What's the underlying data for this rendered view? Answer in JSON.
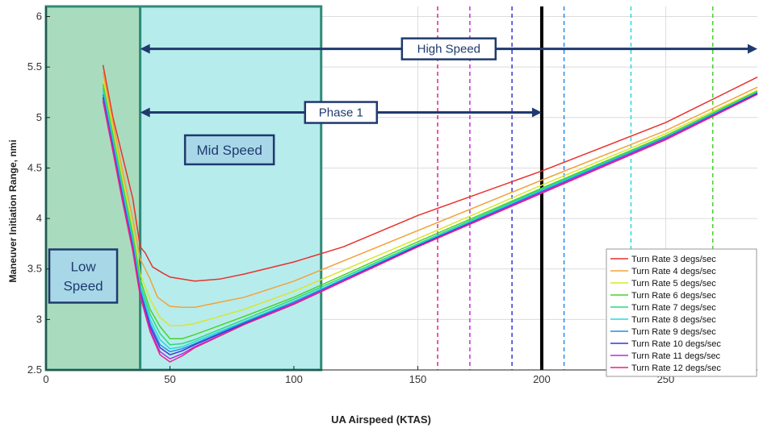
{
  "chart_data": {
    "type": "line",
    "xlabel": "UA Airspeed (KTAS)",
    "ylabel": "Maneuver Initiation Range, nmi",
    "xlim": [
      0,
      287
    ],
    "ylim": [
      2.5,
      6.1
    ],
    "xticks": [
      0,
      50,
      100,
      150,
      200,
      250
    ],
    "yticks": [
      2.5,
      3,
      3.5,
      4,
      4.5,
      5,
      5.5,
      6
    ],
    "xtick_labels": [
      "0",
      "50",
      "100",
      "150",
      "200",
      "250"
    ],
    "ytick_labels": [
      "2.5",
      "3",
      "3.5",
      "4",
      "4.5",
      "5",
      "5.5",
      "6"
    ],
    "grid": true,
    "legend_position": "bottom-right",
    "series": [
      {
        "name": "Turn Rate 3 degs/sec",
        "color": "#e8312e",
        "x": [
          23,
          27,
          31,
          35,
          38,
          40,
          43,
          47,
          50,
          55,
          60,
          70,
          80,
          100,
          120,
          150,
          200,
          250,
          287
        ],
        "y": [
          5.52,
          5.0,
          4.6,
          4.2,
          3.72,
          3.66,
          3.52,
          3.46,
          3.42,
          3.4,
          3.38,
          3.4,
          3.45,
          3.57,
          3.72,
          4.03,
          4.47,
          4.95,
          5.4
        ]
      },
      {
        "name": "Turn Rate 4 degs/sec",
        "color": "#f2a23b",
        "x": [
          23,
          27,
          31,
          35,
          38,
          42,
          45,
          50,
          55,
          60,
          80,
          100,
          150,
          200,
          250,
          287
        ],
        "y": [
          5.45,
          4.95,
          4.45,
          4.0,
          3.6,
          3.4,
          3.22,
          3.13,
          3.12,
          3.12,
          3.22,
          3.38,
          3.88,
          4.38,
          4.87,
          5.3
        ]
      },
      {
        "name": "Turn Rate 5 degs/sec",
        "color": "#d8e62a",
        "x": [
          23,
          27,
          31,
          35,
          38,
          42,
          46,
          50,
          55,
          60,
          80,
          100,
          150,
          200,
          250,
          287
        ],
        "y": [
          5.38,
          4.88,
          4.38,
          3.9,
          3.45,
          3.2,
          3.02,
          2.94,
          2.94,
          2.96,
          3.1,
          3.28,
          3.8,
          4.33,
          4.84,
          5.27
        ]
      },
      {
        "name": "Turn Rate 6 degs/sec",
        "color": "#48d22a",
        "x": [
          23,
          27,
          31,
          35,
          38,
          42,
          46,
          50,
          55,
          60,
          80,
          100,
          150,
          200,
          250,
          287
        ],
        "y": [
          5.33,
          4.83,
          4.32,
          3.85,
          3.4,
          3.1,
          2.93,
          2.81,
          2.81,
          2.85,
          3.03,
          3.22,
          3.77,
          4.3,
          4.82,
          5.26
        ]
      },
      {
        "name": "Turn Rate 7 degs/sec",
        "color": "#2ad884",
        "x": [
          23,
          27,
          31,
          35,
          38,
          42,
          46,
          50,
          55,
          60,
          80,
          100,
          150,
          200,
          250,
          287
        ],
        "y": [
          5.29,
          4.79,
          4.28,
          3.8,
          3.35,
          3.05,
          2.86,
          2.75,
          2.76,
          2.8,
          3.0,
          3.2,
          3.75,
          4.29,
          4.81,
          5.25
        ]
      },
      {
        "name": "Turn Rate 8 degs/sec",
        "color": "#27d8e0",
        "x": [
          23,
          27,
          31,
          35,
          38,
          42,
          46,
          50,
          55,
          60,
          80,
          100,
          150,
          200,
          250,
          287
        ],
        "y": [
          5.26,
          4.76,
          4.25,
          3.77,
          3.32,
          3.0,
          2.8,
          2.71,
          2.73,
          2.78,
          2.98,
          3.18,
          3.74,
          4.28,
          4.8,
          5.25
        ]
      },
      {
        "name": "Turn Rate 9 degs/sec",
        "color": "#2a8ae8",
        "x": [
          23,
          27,
          31,
          35,
          38,
          42,
          46,
          50,
          55,
          60,
          80,
          100,
          150,
          200,
          250,
          287
        ],
        "y": [
          5.23,
          4.73,
          4.22,
          3.74,
          3.29,
          2.96,
          2.75,
          2.68,
          2.71,
          2.76,
          2.97,
          3.17,
          3.73,
          4.27,
          4.8,
          5.24
        ]
      },
      {
        "name": "Turn Rate 10 degs/sec",
        "color": "#3a36d0",
        "x": [
          23,
          27,
          31,
          35,
          38,
          42,
          46,
          50,
          55,
          60,
          80,
          100,
          150,
          200,
          250,
          287
        ],
        "y": [
          5.2,
          4.7,
          4.19,
          3.72,
          3.27,
          2.93,
          2.72,
          2.65,
          2.69,
          2.75,
          2.96,
          3.16,
          3.73,
          4.26,
          4.79,
          5.24
        ]
      },
      {
        "name": "Turn Rate 11 degs/sec",
        "color": "#b22ee0",
        "x": [
          23,
          27,
          31,
          35,
          38,
          42,
          46,
          50,
          55,
          60,
          80,
          100,
          150,
          200,
          250,
          287
        ],
        "y": [
          5.18,
          4.68,
          4.17,
          3.7,
          3.25,
          2.9,
          2.68,
          2.61,
          2.66,
          2.73,
          2.95,
          3.16,
          3.72,
          4.26,
          4.79,
          5.23
        ]
      },
      {
        "name": "Turn Rate 12 degs/sec",
        "color": "#e8208a",
        "x": [
          23,
          27,
          31,
          35,
          38,
          42,
          46,
          50,
          55,
          60,
          80,
          100,
          150,
          200,
          250,
          287
        ],
        "y": [
          5.16,
          4.66,
          4.15,
          3.68,
          3.23,
          2.88,
          2.65,
          2.58,
          2.64,
          2.72,
          2.95,
          3.15,
          3.72,
          4.25,
          4.78,
          5.23
        ]
      }
    ],
    "vertical_lines": [
      {
        "x": 158,
        "color": "#e8208a",
        "style": "dashed"
      },
      {
        "x": 171,
        "color": "#c42ee0",
        "style": "dashed"
      },
      {
        "x": 188,
        "color": "#3a36d0",
        "style": "dashed"
      },
      {
        "x": 200,
        "color": "#000000",
        "style": "solid-thick"
      },
      {
        "x": 209,
        "color": "#2a8ae8",
        "style": "dashed"
      },
      {
        "x": 236,
        "color": "#27d8e0",
        "style": "dashed"
      },
      {
        "x": 269,
        "color": "#48d22a",
        "style": "dashed"
      }
    ],
    "regions": [
      {
        "label": "Low Speed",
        "x_start": 0,
        "x_end": 38,
        "fill": "#a9dcbe",
        "border": "#2e8b7a",
        "label_x": 15,
        "label_y": 3.43
      },
      {
        "label": "Mid Speed",
        "x_start": 38,
        "x_end": 111,
        "fill": "#b7ecec",
        "border": "#2e8b7a",
        "label_x": 74,
        "label_y": 4.68
      }
    ],
    "arrows": [
      {
        "label": "Phase 1",
        "x_start": 38,
        "x_end": 200,
        "y": 5.05
      },
      {
        "label": "High Speed",
        "x_start": 38,
        "x_end": 287,
        "y": 5.68
      }
    ],
    "legend": [
      "Turn Rate 3 degs/sec",
      "Turn Rate 4 degs/sec",
      "Turn Rate 5 degs/sec",
      "Turn Rate 6 degs/sec",
      "Turn Rate 7 degs/sec",
      "Turn Rate 8 degs/sec",
      "Turn Rate 9 degs/sec",
      "Turn Rate 10 degs/sec",
      "Turn Rate 11 degs/sec",
      "Turn Rate 12 degs/sec"
    ]
  }
}
